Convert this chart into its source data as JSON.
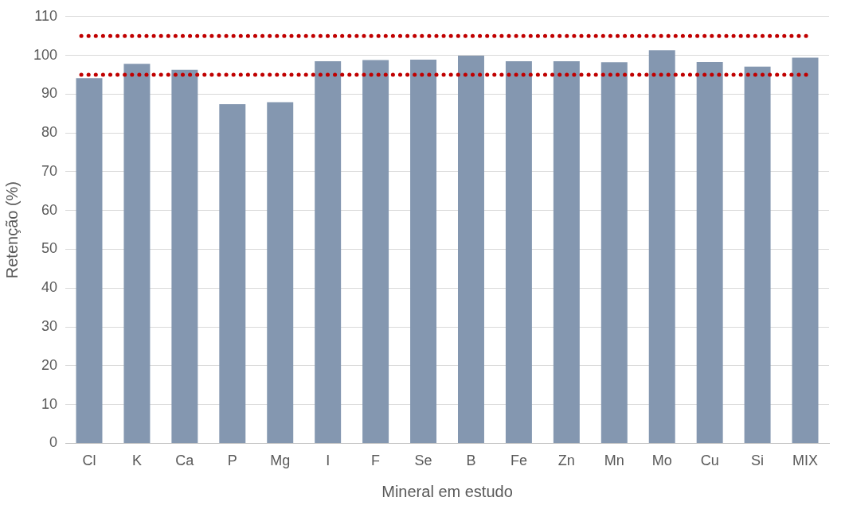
{
  "chart_data": {
    "type": "bar",
    "xlabel": "Mineral em estudo",
    "ylabel": "Retenção (%)",
    "categories": [
      "Cl",
      "K",
      "Ca",
      "P",
      "Mg",
      "I",
      "F",
      "Se",
      "B",
      "Fe",
      "Zn",
      "Mn",
      "Mo",
      "Cu",
      "Si",
      "MIX"
    ],
    "values": [
      94.1,
      97.8,
      96.3,
      87.4,
      87.9,
      98.5,
      98.8,
      98.9,
      99.9,
      98.5,
      98.5,
      98.2,
      101.3,
      98.3,
      97.1,
      99.4
    ],
    "color": "#8497b0",
    "ylim": [
      0,
      110
    ],
    "yticks": [
      0,
      10,
      20,
      30,
      40,
      50,
      60,
      70,
      80,
      90,
      100,
      110
    ],
    "grid": "y",
    "ref_lines": [
      {
        "axis": "y",
        "value": 105,
        "color": "#c00000",
        "line_style": "dotted"
      },
      {
        "axis": "y",
        "value": 95,
        "color": "#c00000",
        "line_style": "dotted"
      }
    ]
  }
}
